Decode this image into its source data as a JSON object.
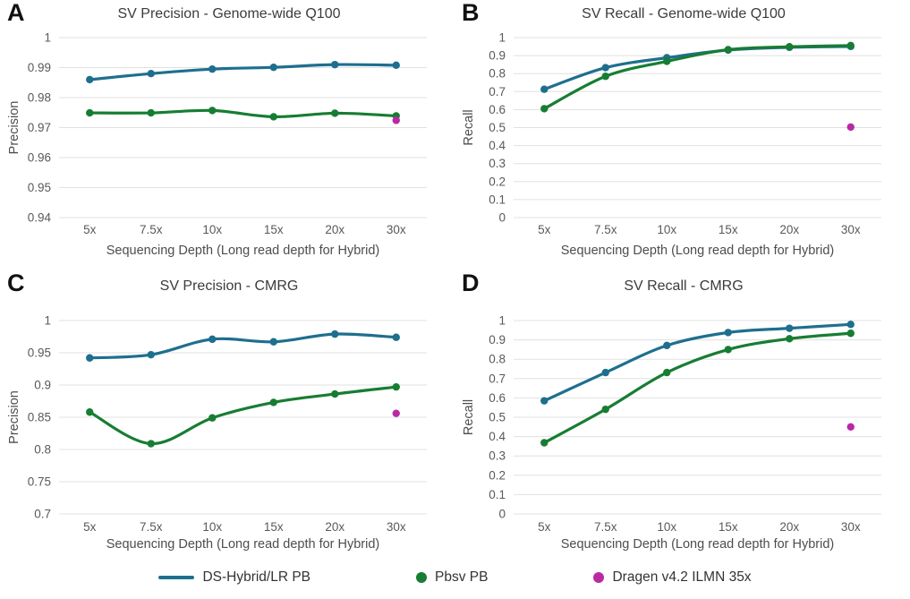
{
  "colors": {
    "blue": "#1e6f8e",
    "green": "#177d33",
    "magenta": "#bb28a5",
    "grid": "#e0e0e0",
    "tick_text": "#595959",
    "axis_text": "#4d4d4d",
    "title_text": "#3b3b3b",
    "background": "#ffffff"
  },
  "legend": {
    "items": [
      {
        "label": "DS-Hybrid/LR PB",
        "marker": "line",
        "color": "#1e6f8e"
      },
      {
        "label": "Pbsv PB",
        "marker": "dot",
        "color": "#177d33"
      },
      {
        "label": "Dragen v4.2 ILMN 35x",
        "marker": "dot",
        "color": "#bb28a5"
      }
    ]
  },
  "chart_data": [
    {
      "panel": "A",
      "type": "line",
      "title": "SV Precision - Genome-wide Q100",
      "xlabel": "Sequencing Depth (Long read depth for Hybrid)",
      "ylabel": "Precision",
      "categories": [
        "5x",
        "7.5x",
        "10x",
        "15x",
        "20x",
        "30x"
      ],
      "ylim": [
        0.94,
        1
      ],
      "ytick_values": [
        1,
        0.99,
        0.98,
        0.97,
        0.96,
        0.95,
        0.94
      ],
      "ytick_labels": [
        "1",
        "0.99",
        "0.98",
        "0.97",
        "0.96",
        "0.95",
        "0.94"
      ],
      "grid": true,
      "legend_position": "bottom-shared",
      "series": [
        {
          "name": "DS-Hybrid/LR PB",
          "type": "line",
          "color": "#1e6f8e",
          "values": [
            0.986,
            0.988,
            0.9895,
            0.9901,
            0.991,
            0.9908
          ]
        },
        {
          "name": "Pbsv PB",
          "type": "line",
          "color": "#177d33",
          "values": [
            0.9749,
            0.9749,
            0.9757,
            0.9736,
            0.9748,
            0.9739
          ]
        },
        {
          "name": "Dragen v4.2 ILMN 35x",
          "type": "scatter",
          "color": "#bb28a5",
          "values": [
            null,
            null,
            null,
            null,
            null,
            0.9724
          ]
        }
      ]
    },
    {
      "panel": "B",
      "type": "line",
      "title": "SV Recall - Genome-wide Q100",
      "xlabel": "Sequencing Depth (Long read depth for Hybrid)",
      "ylabel": "Recall",
      "categories": [
        "5x",
        "7.5x",
        "10x",
        "15x",
        "20x",
        "30x"
      ],
      "ylim": [
        0,
        1
      ],
      "ytick_values": [
        1,
        0.9,
        0.8,
        0.7,
        0.6,
        0.5,
        0.4,
        0.3,
        0.2,
        0.1,
        0
      ],
      "ytick_labels": [
        "1",
        "0.9",
        "0.8",
        "0.7",
        "0.6",
        "0.5",
        "0.4",
        "0.3",
        "0.2",
        "0.1",
        "0"
      ],
      "grid": true,
      "legend_position": "bottom-shared",
      "series": [
        {
          "name": "DS-Hybrid/LR PB",
          "type": "line",
          "color": "#1e6f8e",
          "values": [
            0.713,
            0.833,
            0.888,
            0.931,
            0.946,
            0.951
          ]
        },
        {
          "name": "Pbsv PB",
          "type": "line",
          "color": "#177d33",
          "values": [
            0.605,
            0.785,
            0.868,
            0.933,
            0.949,
            0.956
          ]
        },
        {
          "name": "Dragen v4.2 ILMN 35x",
          "type": "scatter",
          "color": "#bb28a5",
          "values": [
            null,
            null,
            null,
            null,
            null,
            0.503
          ]
        }
      ]
    },
    {
      "panel": "C",
      "type": "line",
      "title": "SV Precision - CMRG",
      "xlabel": "Sequencing Depth (Long read depth for Hybrid)",
      "ylabel": "Precision",
      "categories": [
        "5x",
        "7.5x",
        "10x",
        "15x",
        "20x",
        "30x"
      ],
      "ylim": [
        0.7,
        1
      ],
      "ytick_values": [
        1,
        0.95,
        0.9,
        0.85,
        0.8,
        0.75,
        0.7
      ],
      "ytick_labels": [
        "1",
        "0.95",
        "0.9",
        "0.85",
        "0.8",
        "0.75",
        "0.7"
      ],
      "grid": true,
      "legend_position": "bottom-shared",
      "series": [
        {
          "name": "DS-Hybrid/LR PB",
          "type": "line",
          "color": "#1e6f8e",
          "values": [
            0.942,
            0.947,
            0.971,
            0.967,
            0.979,
            0.974
          ]
        },
        {
          "name": "Pbsv PB",
          "type": "line",
          "color": "#177d33",
          "values": [
            0.858,
            0.809,
            0.849,
            0.873,
            0.886,
            0.897
          ]
        },
        {
          "name": "Dragen v4.2 ILMN 35x",
          "type": "scatter",
          "color": "#bb28a5",
          "values": [
            null,
            null,
            null,
            null,
            null,
            0.856
          ]
        }
      ]
    },
    {
      "panel": "D",
      "type": "line",
      "title": "SV Recall - CMRG",
      "xlabel": "Sequencing Depth (Long read depth for Hybrid)",
      "ylabel": "Recall",
      "categories": [
        "5x",
        "7.5x",
        "10x",
        "15x",
        "20x",
        "30x"
      ],
      "ylim": [
        0,
        1
      ],
      "ytick_values": [
        1,
        0.9,
        0.8,
        0.7,
        0.6,
        0.5,
        0.4,
        0.3,
        0.2,
        0.1,
        0
      ],
      "ytick_labels": [
        "1",
        "0.9",
        "0.8",
        "0.7",
        "0.6",
        "0.5",
        "0.4",
        "0.3",
        "0.2",
        "0.1",
        "0"
      ],
      "grid": true,
      "legend_position": "bottom-shared",
      "series": [
        {
          "name": "DS-Hybrid/LR PB",
          "type": "line",
          "color": "#1e6f8e",
          "values": [
            0.585,
            0.731,
            0.871,
            0.938,
            0.96,
            0.98
          ]
        },
        {
          "name": "Pbsv PB",
          "type": "line",
          "color": "#177d33",
          "values": [
            0.368,
            0.541,
            0.731,
            0.85,
            0.906,
            0.934
          ]
        },
        {
          "name": "Dragen v4.2 ILMN 35x",
          "type": "scatter",
          "color": "#bb28a5",
          "values": [
            null,
            null,
            null,
            null,
            null,
            0.45
          ]
        }
      ]
    }
  ]
}
